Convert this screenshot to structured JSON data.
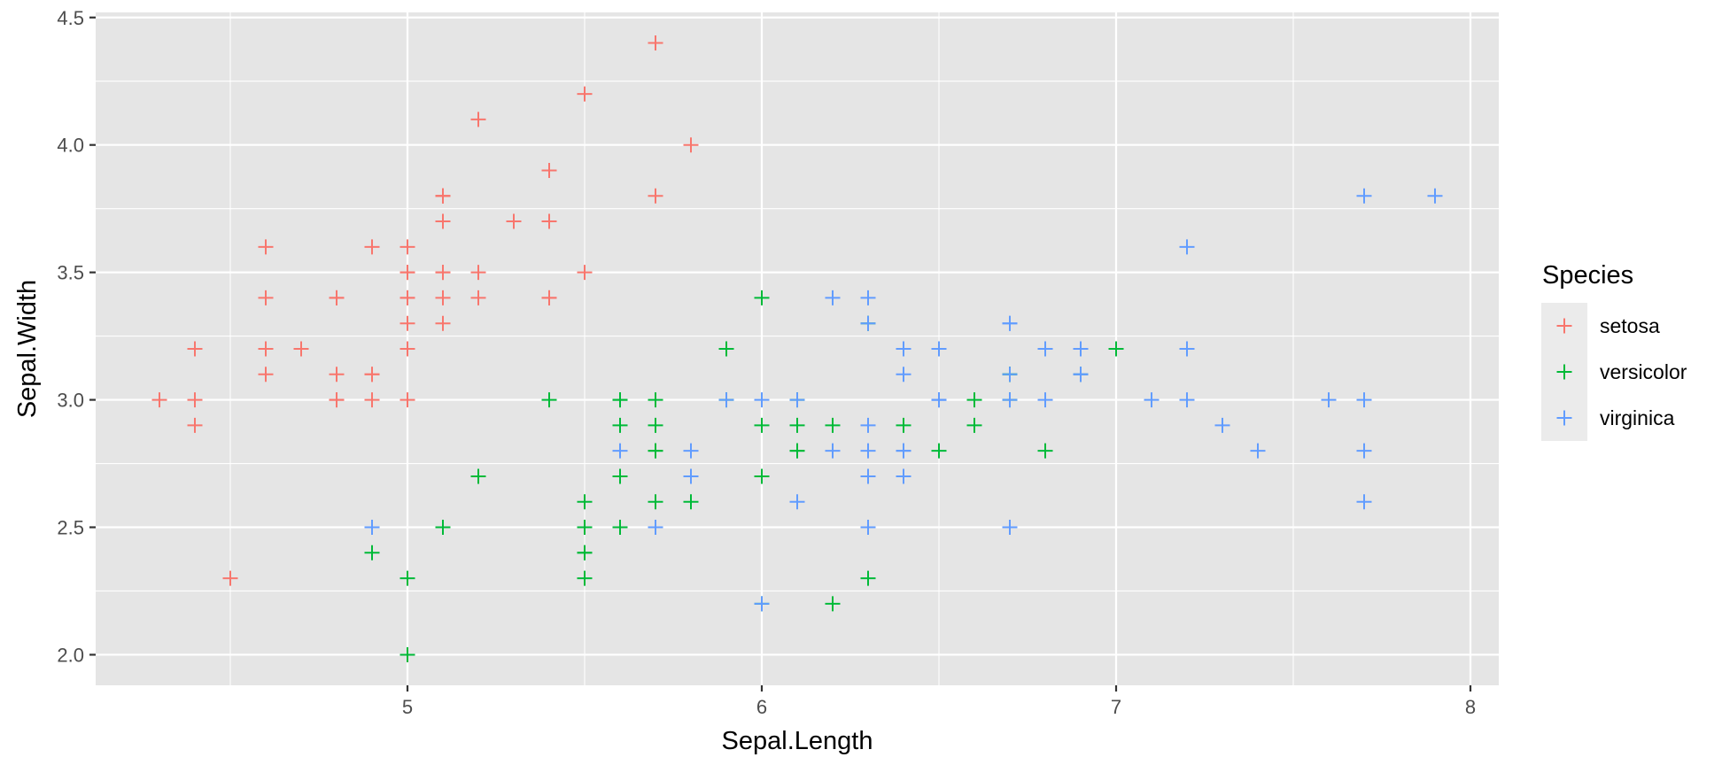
{
  "chart_data": {
    "type": "scatter",
    "xlabel": "Sepal.Length",
    "ylabel": "Sepal.Width",
    "xlim": [
      4.12,
      8.08
    ],
    "ylim": [
      1.88,
      4.52
    ],
    "x_ticks": [
      5,
      6,
      7,
      8
    ],
    "x_tick_labels": [
      "5",
      "6",
      "7",
      "8"
    ],
    "y_ticks": [
      2.0,
      2.5,
      3.0,
      3.5,
      4.0,
      4.5
    ],
    "y_tick_labels": [
      "2.0",
      "2.5",
      "3.0",
      "3.5",
      "4.0",
      "4.5"
    ],
    "grid": true,
    "marker": "plus",
    "legend": {
      "title": "Species",
      "position": "right"
    },
    "panel_background": "#e5e5e5",
    "grid_color": "#ffffff",
    "series": [
      {
        "name": "setosa",
        "color": "#f8766d",
        "points": [
          [
            5.1,
            3.5
          ],
          [
            4.9,
            3.0
          ],
          [
            4.7,
            3.2
          ],
          [
            4.6,
            3.1
          ],
          [
            5.0,
            3.6
          ],
          [
            5.4,
            3.9
          ],
          [
            4.6,
            3.4
          ],
          [
            5.0,
            3.4
          ],
          [
            4.4,
            2.9
          ],
          [
            4.9,
            3.1
          ],
          [
            5.4,
            3.7
          ],
          [
            4.8,
            3.4
          ],
          [
            4.8,
            3.0
          ],
          [
            4.3,
            3.0
          ],
          [
            5.8,
            4.0
          ],
          [
            5.7,
            4.4
          ],
          [
            5.4,
            3.9
          ],
          [
            5.1,
            3.5
          ],
          [
            5.7,
            3.8
          ],
          [
            5.1,
            3.8
          ],
          [
            5.4,
            3.4
          ],
          [
            5.1,
            3.7
          ],
          [
            4.6,
            3.6
          ],
          [
            5.1,
            3.3
          ],
          [
            4.8,
            3.4
          ],
          [
            5.0,
            3.0
          ],
          [
            5.0,
            3.4
          ],
          [
            5.2,
            3.5
          ],
          [
            5.2,
            3.4
          ],
          [
            4.7,
            3.2
          ],
          [
            4.8,
            3.1
          ],
          [
            5.4,
            3.4
          ],
          [
            5.2,
            4.1
          ],
          [
            5.5,
            4.2
          ],
          [
            4.9,
            3.1
          ],
          [
            5.0,
            3.2
          ],
          [
            5.5,
            3.5
          ],
          [
            4.9,
            3.6
          ],
          [
            4.4,
            3.0
          ],
          [
            5.1,
            3.4
          ],
          [
            5.0,
            3.5
          ],
          [
            4.5,
            2.3
          ],
          [
            4.4,
            3.2
          ],
          [
            5.0,
            3.5
          ],
          [
            5.1,
            3.8
          ],
          [
            4.8,
            3.0
          ],
          [
            5.1,
            3.8
          ],
          [
            4.6,
            3.2
          ],
          [
            5.3,
            3.7
          ],
          [
            5.0,
            3.3
          ]
        ]
      },
      {
        "name": "versicolor",
        "color": "#00ba38",
        "points": [
          [
            7.0,
            3.2
          ],
          [
            6.4,
            3.2
          ],
          [
            6.9,
            3.1
          ],
          [
            5.5,
            2.3
          ],
          [
            6.5,
            2.8
          ],
          [
            5.7,
            2.8
          ],
          [
            6.3,
            3.3
          ],
          [
            4.9,
            2.4
          ],
          [
            6.6,
            2.9
          ],
          [
            5.2,
            2.7
          ],
          [
            5.0,
            2.0
          ],
          [
            5.9,
            3.0
          ],
          [
            6.0,
            2.2
          ],
          [
            6.1,
            2.9
          ],
          [
            5.6,
            2.9
          ],
          [
            6.7,
            3.1
          ],
          [
            5.6,
            3.0
          ],
          [
            5.8,
            2.7
          ],
          [
            6.2,
            2.2
          ],
          [
            5.6,
            2.5
          ],
          [
            5.9,
            3.2
          ],
          [
            6.1,
            2.8
          ],
          [
            6.3,
            2.5
          ],
          [
            6.1,
            2.8
          ],
          [
            6.4,
            2.9
          ],
          [
            6.6,
            3.0
          ],
          [
            6.8,
            2.8
          ],
          [
            6.7,
            3.0
          ],
          [
            6.0,
            2.9
          ],
          [
            5.7,
            2.6
          ],
          [
            5.5,
            2.4
          ],
          [
            5.5,
            2.4
          ],
          [
            5.8,
            2.7
          ],
          [
            6.0,
            2.7
          ],
          [
            5.4,
            3.0
          ],
          [
            6.0,
            3.4
          ],
          [
            6.7,
            3.1
          ],
          [
            6.3,
            2.3
          ],
          [
            5.6,
            3.0
          ],
          [
            5.5,
            2.5
          ],
          [
            5.5,
            2.6
          ],
          [
            6.1,
            3.0
          ],
          [
            5.8,
            2.6
          ],
          [
            5.0,
            2.3
          ],
          [
            5.6,
            2.7
          ],
          [
            5.7,
            3.0
          ],
          [
            5.7,
            2.9
          ],
          [
            6.2,
            2.9
          ],
          [
            5.1,
            2.5
          ],
          [
            5.7,
            2.8
          ]
        ]
      },
      {
        "name": "virginica",
        "color": "#619cff",
        "points": [
          [
            6.3,
            3.3
          ],
          [
            5.8,
            2.7
          ],
          [
            7.1,
            3.0
          ],
          [
            6.3,
            2.9
          ],
          [
            6.5,
            3.0
          ],
          [
            7.6,
            3.0
          ],
          [
            4.9,
            2.5
          ],
          [
            7.3,
            2.9
          ],
          [
            6.7,
            2.5
          ],
          [
            7.2,
            3.6
          ],
          [
            6.5,
            3.2
          ],
          [
            6.4,
            2.7
          ],
          [
            6.8,
            3.0
          ],
          [
            5.7,
            2.5
          ],
          [
            5.8,
            2.8
          ],
          [
            6.4,
            3.2
          ],
          [
            6.5,
            3.0
          ],
          [
            7.7,
            3.8
          ],
          [
            7.7,
            2.6
          ],
          [
            6.0,
            2.2
          ],
          [
            6.9,
            3.2
          ],
          [
            5.6,
            2.8
          ],
          [
            7.7,
            2.8
          ],
          [
            6.3,
            2.7
          ],
          [
            6.7,
            3.3
          ],
          [
            7.2,
            3.2
          ],
          [
            6.2,
            2.8
          ],
          [
            6.1,
            3.0
          ],
          [
            6.4,
            2.8
          ],
          [
            7.2,
            3.0
          ],
          [
            7.4,
            2.8
          ],
          [
            7.9,
            3.8
          ],
          [
            6.4,
            2.8
          ],
          [
            6.3,
            2.8
          ],
          [
            6.1,
            2.6
          ],
          [
            7.7,
            3.0
          ],
          [
            6.3,
            3.4
          ],
          [
            6.4,
            3.1
          ],
          [
            6.0,
            3.0
          ],
          [
            6.9,
            3.1
          ],
          [
            6.7,
            3.1
          ],
          [
            6.9,
            3.1
          ],
          [
            5.8,
            2.7
          ],
          [
            6.8,
            3.2
          ],
          [
            6.7,
            3.3
          ],
          [
            6.7,
            3.0
          ],
          [
            6.3,
            2.5
          ],
          [
            6.5,
            3.0
          ],
          [
            6.2,
            3.4
          ],
          [
            5.9,
            3.0
          ]
        ]
      }
    ]
  }
}
